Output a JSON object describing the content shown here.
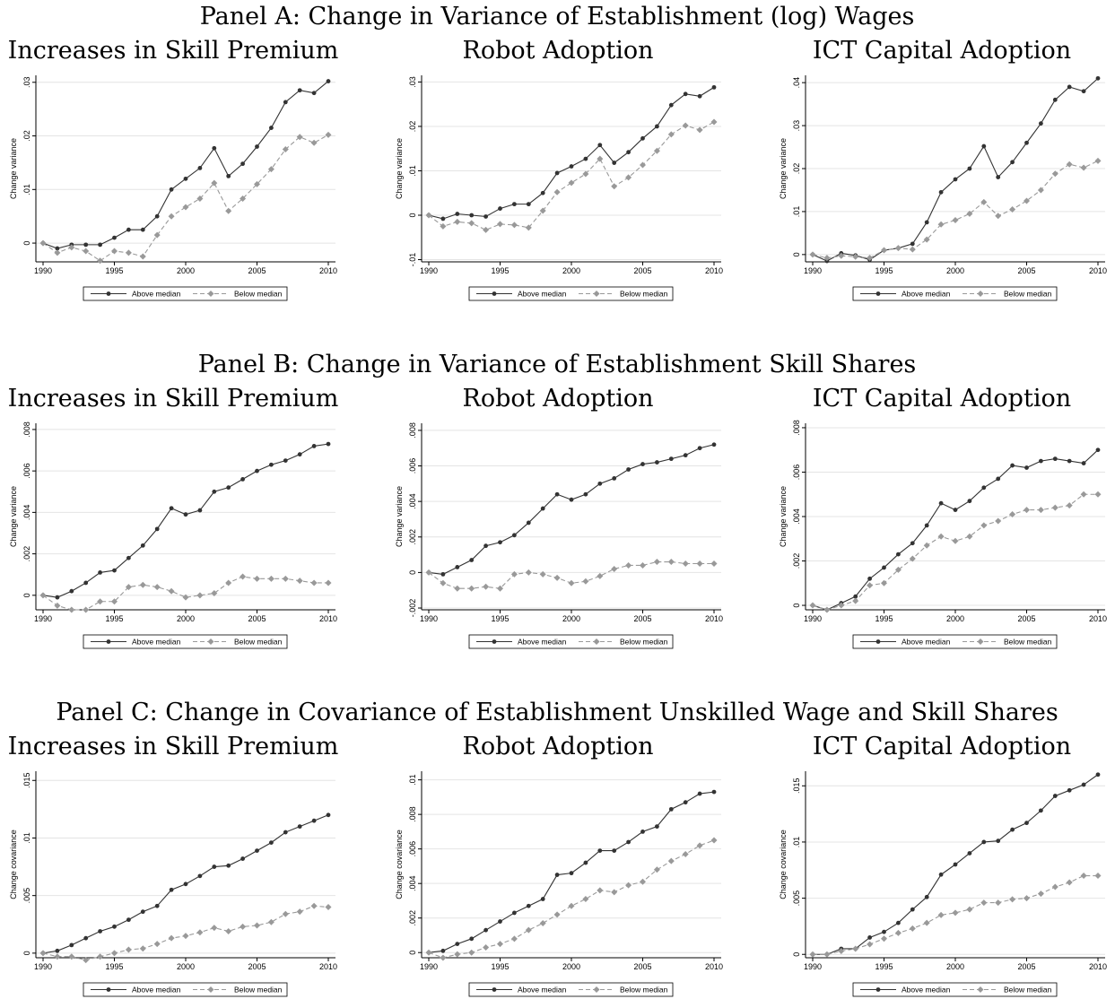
{
  "panel_titles": [
    "Panel A: Change in Variance of Establishment (log) Wages",
    "Panel B: Change in Variance of Establishment Skill Shares",
    "Panel C: Change in Covariance of Establishment Unskilled Wage and Skill Shares"
  ],
  "chart_data": [
    {
      "type": "line",
      "title": "Increases in Skill Premium",
      "ylabel": "Change variance",
      "x": [
        1990,
        1991,
        1992,
        1993,
        1994,
        1995,
        1996,
        1997,
        1998,
        1999,
        2000,
        2001,
        2002,
        2003,
        2004,
        2005,
        2006,
        2007,
        2008,
        2009,
        2010
      ],
      "xlim": [
        1990,
        2010
      ],
      "xticks": [
        1990,
        1995,
        2000,
        2005,
        2010
      ],
      "ylim": [
        -0.0035,
        0.0313
      ],
      "yticks": [
        0,
        {
          "value": 0.01,
          "label": ".01"
        },
        {
          "value": 0.02,
          "label": ".02"
        },
        {
          "value": 0.03,
          "label": ".03"
        }
      ],
      "grid": true,
      "series": [
        {
          "name": "Above median",
          "color": "#333333",
          "line_style": "solid",
          "marker": "circle",
          "values": [
            0,
            -0.001,
            -0.0003,
            -0.0003,
            -0.0003,
            0.001,
            0.0025,
            0.0025,
            0.005,
            0.01,
            0.012,
            0.014,
            0.0177,
            0.0125,
            0.0148,
            0.018,
            0.0215,
            0.0263,
            0.0285,
            0.028,
            0.0302
          ]
        },
        {
          "name": "Below median",
          "color": "#999999",
          "line_style": "dashed",
          "marker": "diamond",
          "values": [
            0,
            -0.0018,
            -0.0008,
            -0.0015,
            -0.0033,
            -0.0015,
            -0.0018,
            -0.0025,
            0.0015,
            0.005,
            0.0067,
            0.0083,
            0.0112,
            0.006,
            0.0083,
            0.011,
            0.0138,
            0.0175,
            0.0198,
            0.0187,
            0.0202
          ]
        }
      ]
    },
    {
      "type": "line",
      "title": "Robot Adoption",
      "ylabel": "Change variance",
      "x": [
        1990,
        1991,
        1992,
        1993,
        1994,
        1995,
        1996,
        1997,
        1998,
        1999,
        2000,
        2001,
        2002,
        2003,
        2004,
        2005,
        2006,
        2007,
        2008,
        2009,
        2010
      ],
      "xlim": [
        1990,
        2010
      ],
      "xticks": [
        1990,
        1995,
        2000,
        2005,
        2010
      ],
      "ylim": [
        -0.0105,
        0.0315
      ],
      "yticks": [
        {
          "value": -0.01,
          "label": "-.01"
        },
        0,
        {
          "value": 0.01,
          "label": ".01"
        },
        {
          "value": 0.02,
          "label": ".02"
        },
        {
          "value": 0.03,
          "label": ".03"
        }
      ],
      "grid": true,
      "series": [
        {
          "name": "Above median",
          "color": "#333333",
          "line_style": "solid",
          "marker": "circle",
          "values": [
            0,
            -0.0008,
            0.0003,
            0,
            -0.0003,
            0.0015,
            0.0025,
            0.0025,
            0.005,
            0.0095,
            0.011,
            0.0127,
            0.0158,
            0.0118,
            0.0142,
            0.0173,
            0.02,
            0.0248,
            0.0273,
            0.0268,
            0.0288
          ]
        },
        {
          "name": "Below median",
          "color": "#999999",
          "line_style": "dashed",
          "marker": "diamond",
          "values": [
            0,
            -0.0025,
            -0.0015,
            -0.0018,
            -0.0033,
            -0.002,
            -0.0022,
            -0.0028,
            0.001,
            0.0052,
            0.0073,
            0.0093,
            0.0127,
            0.0065,
            0.0085,
            0.0113,
            0.0145,
            0.0182,
            0.0202,
            0.0192,
            0.021
          ]
        }
      ]
    },
    {
      "type": "line",
      "title": "ICT Capital Adoption",
      "ylabel": "Change variance",
      "x": [
        1990,
        1991,
        1992,
        1993,
        1994,
        1995,
        1996,
        1997,
        1998,
        1999,
        2000,
        2001,
        2002,
        2003,
        2004,
        2005,
        2006,
        2007,
        2008,
        2009,
        2010
      ],
      "xlim": [
        1990,
        2010
      ],
      "xticks": [
        1990,
        1995,
        2000,
        2005,
        2010
      ],
      "ylim": [
        -0.0017,
        0.0417
      ],
      "yticks": [
        0,
        {
          "value": 0.01,
          "label": ".01"
        },
        {
          "value": 0.02,
          "label": ".02"
        },
        {
          "value": 0.03,
          "label": ".03"
        },
        {
          "value": 0.04,
          "label": ".04"
        }
      ],
      "grid": true,
      "series": [
        {
          "name": "Above median",
          "color": "#333333",
          "line_style": "solid",
          "marker": "circle",
          "values": [
            0,
            -0.0015,
            0.0003,
            -0.0002,
            -0.0012,
            0.001,
            0.0015,
            0.0025,
            0.0075,
            0.0145,
            0.0175,
            0.02,
            0.0252,
            0.018,
            0.0215,
            0.026,
            0.0305,
            0.036,
            0.039,
            0.038,
            0.041
          ]
        },
        {
          "name": "Below median",
          "color": "#999999",
          "line_style": "dashed",
          "marker": "diamond",
          "values": [
            0,
            -0.0008,
            -0.0003,
            -0.0005,
            -0.0008,
            0.001,
            0.0015,
            0.0012,
            0.0035,
            0.007,
            0.008,
            0.0095,
            0.0122,
            0.009,
            0.0105,
            0.0125,
            0.015,
            0.0188,
            0.021,
            0.0202,
            0.0218
          ]
        }
      ]
    },
    {
      "type": "line",
      "title": "Increases in Skill Premium",
      "ylabel": "Change variance",
      "x": [
        1990,
        1991,
        1992,
        1993,
        1994,
        1995,
        1996,
        1997,
        1998,
        1999,
        2000,
        2001,
        2002,
        2003,
        2004,
        2005,
        2006,
        2007,
        2008,
        2009,
        2010
      ],
      "xlim": [
        1990,
        2010
      ],
      "xticks": [
        1990,
        1995,
        2000,
        2005,
        2010
      ],
      "ylim": [
        -0.0007,
        0.0083
      ],
      "yticks": [
        0,
        {
          "value": 0.002,
          "label": ".002"
        },
        {
          "value": 0.004,
          "label": ".004"
        },
        {
          "value": 0.006,
          "label": ".006"
        },
        {
          "value": 0.008,
          "label": ".008"
        }
      ],
      "grid": true,
      "series": [
        {
          "name": "Above median",
          "color": "#333333",
          "line_style": "solid",
          "marker": "circle",
          "values": [
            0,
            -0.0001,
            0.0002,
            0.0006,
            0.0011,
            0.0012,
            0.0018,
            0.0024,
            0.0032,
            0.0042,
            0.0039,
            0.0041,
            0.005,
            0.0052,
            0.0056,
            0.006,
            0.0063,
            0.0065,
            0.0068,
            0.0072,
            0.0073
          ]
        },
        {
          "name": "Below median",
          "color": "#999999",
          "line_style": "dashed",
          "marker": "diamond",
          "values": [
            0,
            -0.0005,
            -0.0007,
            -0.0007,
            -0.0003,
            -0.0003,
            0.0004,
            0.0005,
            0.0004,
            0.0002,
            -0.0001,
            0,
            0.0001,
            0.0006,
            0.0009,
            0.0008,
            0.0008,
            0.0008,
            0.0007,
            0.0006,
            0.0006
          ]
        }
      ]
    },
    {
      "type": "line",
      "title": "Robot Adoption",
      "ylabel": "Change variance",
      "x": [
        1990,
        1991,
        1992,
        1993,
        1994,
        1995,
        1996,
        1997,
        1998,
        1999,
        2000,
        2001,
        2002,
        2003,
        2004,
        2005,
        2006,
        2007,
        2008,
        2009,
        2010
      ],
      "xlim": [
        1990,
        2010
      ],
      "xticks": [
        1990,
        1995,
        2000,
        2005,
        2010
      ],
      "ylim": [
        -0.0021,
        0.0084
      ],
      "yticks": [
        {
          "value": -0.002,
          "label": "-.002"
        },
        0,
        {
          "value": 0.002,
          "label": ".002"
        },
        {
          "value": 0.004,
          "label": ".004"
        },
        {
          "value": 0.006,
          "label": ".006"
        },
        {
          "value": 0.008,
          "label": ".008"
        }
      ],
      "grid": true,
      "series": [
        {
          "name": "Above median",
          "color": "#333333",
          "line_style": "solid",
          "marker": "circle",
          "values": [
            0,
            -0.0001,
            0.0003,
            0.0007,
            0.0015,
            0.0017,
            0.0021,
            0.0028,
            0.0036,
            0.0044,
            0.0041,
            0.0044,
            0.005,
            0.0053,
            0.0058,
            0.0061,
            0.0062,
            0.0064,
            0.0066,
            0.007,
            0.0072
          ]
        },
        {
          "name": "Below median",
          "color": "#999999",
          "line_style": "dashed",
          "marker": "diamond",
          "values": [
            0,
            -0.0006,
            -0.0009,
            -0.0009,
            -0.0008,
            -0.0009,
            -0.0001,
            0,
            -0.0001,
            -0.0003,
            -0.0006,
            -0.0005,
            -0.0002,
            0.0002,
            0.0004,
            0.0004,
            0.0006,
            0.0006,
            0.0005,
            0.0005,
            0.0005
          ]
        }
      ]
    },
    {
      "type": "line",
      "title": "ICT Capital Adoption",
      "ylabel": "Change variance",
      "x": [
        1990,
        1991,
        1992,
        1993,
        1994,
        1995,
        1996,
        1997,
        1998,
        1999,
        2000,
        2001,
        2002,
        2003,
        2004,
        2005,
        2006,
        2007,
        2008,
        2009,
        2010
      ],
      "xlim": [
        1990,
        2010
      ],
      "xticks": [
        1990,
        1995,
        2000,
        2005,
        2010
      ],
      "ylim": [
        -0.0002,
        0.0082
      ],
      "yticks": [
        0,
        {
          "value": 0.002,
          "label": ".002"
        },
        {
          "value": 0.004,
          "label": ".004"
        },
        {
          "value": 0.006,
          "label": ".006"
        },
        {
          "value": 0.008,
          "label": ".008"
        }
      ],
      "grid": true,
      "series": [
        {
          "name": "Above median",
          "color": "#333333",
          "line_style": "solid",
          "marker": "circle",
          "values": [
            0,
            -0.0002,
            0.0001,
            0.0004,
            0.0012,
            0.0017,
            0.0023,
            0.0028,
            0.0036,
            0.0046,
            0.0043,
            0.0047,
            0.0053,
            0.0057,
            0.0063,
            0.0062,
            0.0065,
            0.0066,
            0.0065,
            0.0064,
            0.007
          ]
        },
        {
          "name": "Below median",
          "color": "#999999",
          "line_style": "dashed",
          "marker": "diamond",
          "values": [
            0,
            -0.0002,
            0,
            0.0002,
            0.0009,
            0.001,
            0.0016,
            0.0021,
            0.0027,
            0.0031,
            0.0029,
            0.0031,
            0.0036,
            0.0038,
            0.0041,
            0.0043,
            0.0043,
            0.0044,
            0.0045,
            0.005,
            0.005
          ]
        }
      ]
    },
    {
      "type": "line",
      "title": "Increases in Skill Premium",
      "ylabel": "Change covariance",
      "x": [
        1990,
        1991,
        1992,
        1993,
        1994,
        1995,
        1996,
        1997,
        1998,
        1999,
        2000,
        2001,
        2002,
        2003,
        2004,
        2005,
        2006,
        2007,
        2008,
        2009,
        2010
      ],
      "xlim": [
        1990,
        2010
      ],
      "xticks": [
        1990,
        1995,
        2000,
        2005,
        2010
      ],
      "ylim": [
        -0.0004,
        0.0158
      ],
      "yticks": [
        0,
        {
          "value": 0.005,
          "label": ".005"
        },
        {
          "value": 0.01,
          "label": ".01"
        },
        {
          "value": 0.015,
          "label": ".015"
        }
      ],
      "grid": true,
      "series": [
        {
          "name": "Above median",
          "color": "#333333",
          "line_style": "solid",
          "marker": "circle",
          "values": [
            0,
            0.0002,
            0.0007,
            0.0013,
            0.0019,
            0.0023,
            0.0029,
            0.0036,
            0.0041,
            0.0055,
            0.006,
            0.0067,
            0.0075,
            0.0076,
            0.0082,
            0.0089,
            0.0096,
            0.0105,
            0.011,
            0.0115,
            0.012
          ]
        },
        {
          "name": "Below median",
          "color": "#999999",
          "line_style": "dashed",
          "marker": "diamond",
          "values": [
            0,
            -0.0003,
            -0.0003,
            -0.0006,
            -0.0003,
            0,
            0.0003,
            0.0004,
            0.0008,
            0.0013,
            0.0015,
            0.0018,
            0.0022,
            0.0019,
            0.0023,
            0.0024,
            0.0027,
            0.0034,
            0.0036,
            0.0041,
            0.004
          ]
        }
      ]
    },
    {
      "type": "line",
      "title": "Robot Adoption",
      "ylabel": "Change covariance",
      "x": [
        1990,
        1991,
        1992,
        1993,
        1994,
        1995,
        1996,
        1997,
        1998,
        1999,
        2000,
        2001,
        2002,
        2003,
        2004,
        2005,
        2006,
        2007,
        2008,
        2009,
        2010
      ],
      "xlim": [
        1990,
        2010
      ],
      "xticks": [
        1990,
        1995,
        2000,
        2005,
        2010
      ],
      "ylim": [
        -0.0003,
        0.0105
      ],
      "yticks": [
        0,
        {
          "value": 0.002,
          "label": ".002"
        },
        {
          "value": 0.004,
          "label": ".004"
        },
        {
          "value": 0.006,
          "label": ".006"
        },
        {
          "value": 0.008,
          "label": ".008"
        },
        {
          "value": 0.01,
          "label": ".01"
        }
      ],
      "grid": true,
      "series": [
        {
          "name": "Above median",
          "color": "#333333",
          "line_style": "solid",
          "marker": "circle",
          "values": [
            0,
            0.0001,
            0.0005,
            0.0008,
            0.0013,
            0.0018,
            0.0023,
            0.0027,
            0.0031,
            0.0045,
            0.0046,
            0.0052,
            0.0059,
            0.0059,
            0.0064,
            0.007,
            0.0073,
            0.0083,
            0.0087,
            0.0092,
            0.0093
          ]
        },
        {
          "name": "Below median",
          "color": "#999999",
          "line_style": "dashed",
          "marker": "diamond",
          "values": [
            0,
            -0.0003,
            -0.0001,
            0,
            0.0003,
            0.0005,
            0.0008,
            0.0013,
            0.0017,
            0.0022,
            0.0027,
            0.0031,
            0.0036,
            0.0035,
            0.0039,
            0.0041,
            0.0048,
            0.0053,
            0.0057,
            0.0062,
            0.0065
          ]
        }
      ]
    },
    {
      "type": "line",
      "title": "ICT Capital Adoption",
      "ylabel": "Change covariance",
      "x": [
        1990,
        1991,
        1992,
        1993,
        1994,
        1995,
        1996,
        1997,
        1998,
        1999,
        2000,
        2001,
        2002,
        2003,
        2004,
        2005,
        2006,
        2007,
        2008,
        2009,
        2010
      ],
      "xlim": [
        1990,
        2010
      ],
      "xticks": [
        1990,
        1995,
        2000,
        2005,
        2010
      ],
      "ylim": [
        -0.0003,
        0.0163
      ],
      "yticks": [
        0,
        {
          "value": 0.005,
          "label": ".005"
        },
        {
          "value": 0.01,
          "label": ".01"
        },
        {
          "value": 0.015,
          "label": ".015"
        }
      ],
      "grid": true,
      "series": [
        {
          "name": "Above median",
          "color": "#333333",
          "line_style": "solid",
          "marker": "circle",
          "values": [
            0,
            0,
            0.0005,
            0.0005,
            0.0015,
            0.002,
            0.0028,
            0.004,
            0.0051,
            0.0071,
            0.008,
            0.009,
            0.01,
            0.0101,
            0.0111,
            0.0117,
            0.0128,
            0.0141,
            0.0146,
            0.0151,
            0.016
          ]
        },
        {
          "name": "Below median",
          "color": "#999999",
          "line_style": "dashed",
          "marker": "diamond",
          "values": [
            0,
            0,
            0.0003,
            0.0005,
            0.0009,
            0.0014,
            0.0019,
            0.0023,
            0.0028,
            0.0035,
            0.0037,
            0.004,
            0.0046,
            0.0046,
            0.0049,
            0.005,
            0.0054,
            0.006,
            0.0064,
            0.007,
            0.007
          ]
        }
      ]
    }
  ]
}
